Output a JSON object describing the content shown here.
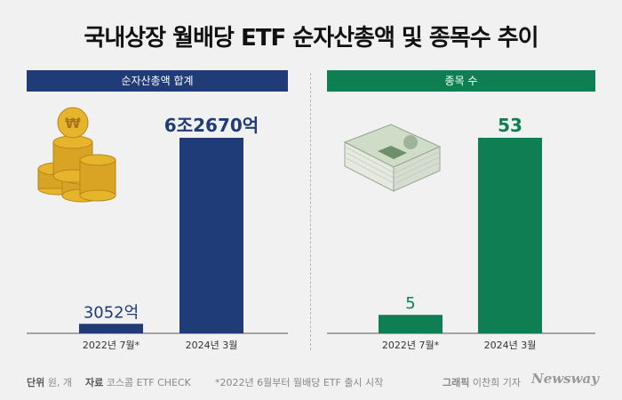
{
  "title": "국내상장 월배당 ETF 순자산총액 및 종목수 추이",
  "chart_data": [
    {
      "type": "bar",
      "title": "순자산총액 합계",
      "categories": [
        "2022년 7월*",
        "2024년 3월"
      ],
      "values": [
        3052,
        62670
      ],
      "value_labels": [
        "3052억",
        "6조2670억"
      ],
      "unit": "억원",
      "color": "#1f3c78",
      "ylim": [
        0,
        65000
      ]
    },
    {
      "type": "bar",
      "title": "종목 수",
      "categories": [
        "2022년 7월*",
        "2024년 3월"
      ],
      "values": [
        5,
        53
      ],
      "value_labels": [
        "5",
        "53"
      ],
      "unit": "개",
      "color": "#0f7f53",
      "ylim": [
        0,
        55
      ]
    }
  ],
  "footer": {
    "unit_label": "단위",
    "unit_value": "원, 개",
    "source_label": "자료",
    "source_value": "코스콤 ETF CHECK",
    "note": "*2022년 6월부터 월배당 ETF 출시 시작",
    "credit_label": "그래픽",
    "credit_value": "이찬희 기자",
    "brand": "Newsway"
  },
  "icons": [
    "gold-coins-icon",
    "money-stack-icon"
  ]
}
